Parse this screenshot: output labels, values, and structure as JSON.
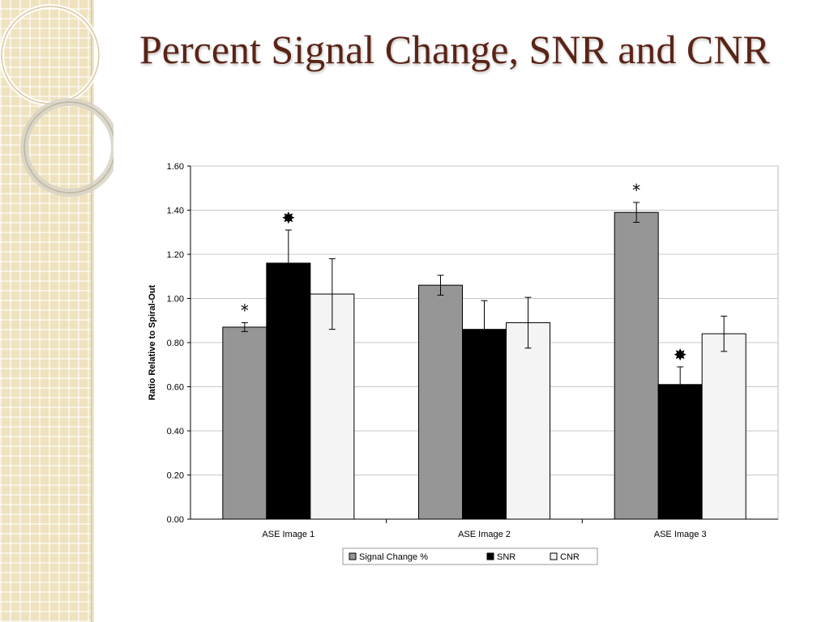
{
  "slide": {
    "title": "Percent Signal Change, SNR and CNR"
  },
  "chart_data": {
    "type": "bar",
    "title": "",
    "xlabel": "",
    "ylabel": "Ratio Relative to Spiral-Out",
    "ylim": [
      0,
      1.6
    ],
    "yticks": [
      "0.00",
      "0.20",
      "0.40",
      "0.60",
      "0.80",
      "1.00",
      "1.20",
      "1.40",
      "1.60"
    ],
    "grid": true,
    "legend_position": "bottom",
    "categories": [
      "ASE Image 1",
      "ASE Image 2",
      "ASE Image 3"
    ],
    "series": [
      {
        "name": "Signal Change %",
        "color": "#969696",
        "values": [
          0.87,
          1.06,
          1.39
        ],
        "error": [
          0.02,
          0.045,
          0.045
        ],
        "markers": [
          "*",
          "",
          "*"
        ]
      },
      {
        "name": "SNR",
        "color": "#000000",
        "values": [
          1.16,
          0.86,
          0.61
        ],
        "error": [
          0.15,
          0.13,
          0.08
        ],
        "markers": [
          "✸",
          "",
          "✸"
        ]
      },
      {
        "name": "CNR",
        "color": "#f4f4f4",
        "values": [
          1.02,
          0.89,
          0.84
        ],
        "error": [
          0.16,
          0.115,
          0.08
        ],
        "markers": [
          "",
          "",
          ""
        ]
      }
    ]
  }
}
